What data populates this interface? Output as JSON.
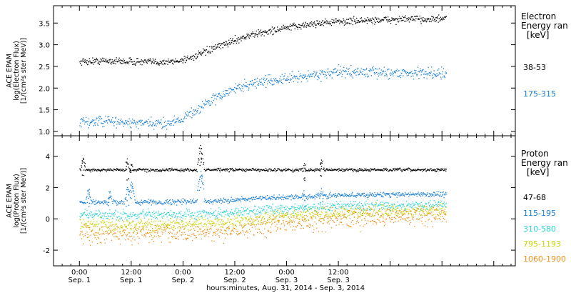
{
  "chart_data": [
    {
      "type": "scatter",
      "panel": "electron",
      "ylabel": [
        "ACE EPAM",
        "log(Electron Flux)",
        "[1/(cm²s ster MeV)]"
      ],
      "ylim": [
        0.9,
        3.9
      ],
      "yticks": [
        "1.0",
        "1.5",
        "2.0",
        "2.5",
        "3.0",
        "3.5"
      ],
      "legend_title": [
        "Electron",
        "Energy ran",
        "[keV]"
      ],
      "series": [
        {
          "name": "38-53",
          "color": "#000000",
          "x": [
            0,
            6,
            12,
            18,
            22,
            26,
            30,
            33,
            36,
            40,
            44,
            48,
            52,
            56,
            60,
            64,
            70,
            76,
            82,
            85
          ],
          "y": [
            2.62,
            2.64,
            2.62,
            2.61,
            2.62,
            2.72,
            2.88,
            3.0,
            3.12,
            3.24,
            3.32,
            3.4,
            3.46,
            3.52,
            3.54,
            3.56,
            3.58,
            3.6,
            3.6,
            3.6
          ],
          "noise": 0.04
        },
        {
          "name": "175-315",
          "color": "#1a7fd6",
          "x": [
            0,
            6,
            12,
            18,
            21,
            24,
            27,
            30,
            33,
            36,
            40,
            44,
            48,
            52,
            56,
            60,
            64,
            70,
            76,
            82,
            85
          ],
          "y": [
            1.22,
            1.25,
            1.2,
            1.18,
            1.22,
            1.32,
            1.5,
            1.7,
            1.85,
            2.0,
            2.12,
            2.18,
            2.22,
            2.28,
            2.34,
            2.38,
            2.38,
            2.37,
            2.36,
            2.36,
            2.35
          ],
          "noise": 0.06
        }
      ]
    },
    {
      "type": "scatter",
      "panel": "proton",
      "ylabel": [
        "ACE EPAM",
        "log(Proton Flux)",
        "[1/(cm²s ster MeV)]"
      ],
      "ylim": [
        -3.0,
        5.3
      ],
      "yticks": [
        "-2",
        "0",
        "2",
        "4"
      ],
      "legend_title": [
        "Proton",
        "Energy ran",
        "[keV]"
      ],
      "series": [
        {
          "name": "47-68",
          "color": "#000000",
          "x": [
            0,
            10,
            20,
            30,
            40,
            50,
            60,
            70,
            80,
            85
          ],
          "y": [
            3.15,
            3.15,
            3.15,
            3.15,
            3.15,
            3.15,
            3.15,
            3.15,
            3.15,
            3.15
          ],
          "noise": 0.05,
          "spikes": [
            [
              0.8,
              3.9
            ],
            [
              11,
              3.7
            ],
            [
              12,
              3.6
            ],
            [
              28,
              4.6
            ],
            [
              52,
              3.5
            ],
            [
              56,
              3.8
            ]
          ]
        },
        {
          "name": "115-195",
          "color": "#1a7fd6",
          "x": [
            0,
            10,
            20,
            30,
            40,
            50,
            60,
            70,
            80,
            85
          ],
          "y": [
            1.05,
            1.08,
            1.1,
            1.15,
            1.3,
            1.42,
            1.52,
            1.58,
            1.6,
            1.6
          ],
          "noise": 0.08,
          "spikes": [
            [
              2,
              2.0
            ],
            [
              7,
              1.8
            ],
            [
              11,
              2.0
            ],
            [
              12,
              2.4
            ],
            [
              28,
              3.0
            ],
            [
              52,
              1.8
            ],
            [
              56,
              1.8
            ]
          ]
        },
        {
          "name": "310-580",
          "color": "#2ad4d4",
          "x": [
            0,
            10,
            20,
            30,
            40,
            50,
            60,
            70,
            80,
            85
          ],
          "y": [
            0.3,
            0.25,
            0.25,
            0.32,
            0.55,
            0.72,
            0.82,
            0.88,
            0.9,
            0.9
          ],
          "noise": 0.15
        },
        {
          "name": "795-1193",
          "color": "#c8d400",
          "x": [
            0,
            10,
            20,
            30,
            40,
            50,
            60,
            70,
            80,
            85
          ],
          "y": [
            -0.35,
            -0.4,
            -0.38,
            -0.3,
            0.0,
            0.25,
            0.4,
            0.5,
            0.55,
            0.55
          ],
          "noise": 0.2
        },
        {
          "name": "1060-1900",
          "color": "#f0901a",
          "x": [
            0,
            10,
            20,
            30,
            40,
            50,
            60,
            70,
            80,
            85
          ],
          "y": [
            -0.95,
            -0.9,
            -0.95,
            -0.85,
            -0.45,
            -0.15,
            0.05,
            0.15,
            0.2,
            0.2
          ],
          "noise": 0.3
        }
      ]
    }
  ],
  "x_axis": {
    "range_hours": [
      -6,
      101
    ],
    "ticks": [
      {
        "hour": 0,
        "line1": "0:00",
        "line2": "Sep. 1"
      },
      {
        "hour": 12,
        "line1": "12:00",
        "line2": "Sep. 1"
      },
      {
        "hour": 24,
        "line1": "0:00",
        "line2": "Sep. 2"
      },
      {
        "hour": 36,
        "line1": "12:00",
        "line2": "Sep. 2"
      },
      {
        "hour": 48,
        "line1": "0:00",
        "line2": "Sep. 3"
      },
      {
        "hour": 60,
        "line1": "12:00",
        "line2": "Sep. 3"
      }
    ],
    "label": "hours:minutes, Aug. 31, 2014 - Sep.  3, 2014"
  }
}
